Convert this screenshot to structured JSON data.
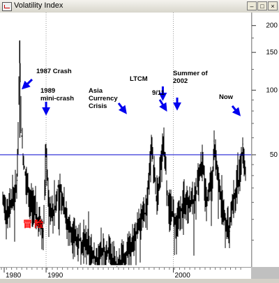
{
  "window": {
    "title": "Volatility Index"
  },
  "watermark": "冒险",
  "chart_data": {
    "type": "line",
    "y_scale": "log",
    "ylim": [
      15,
      230
    ],
    "xlim": [
      1986.5,
      2005
    ],
    "y_ticks": [
      50,
      100,
      150,
      200
    ],
    "x_ticks": [
      1980,
      1990,
      2000
    ],
    "x_tick_labels": [
      "1980",
      "1990",
      "2000"
    ],
    "reference_line": 50,
    "grid": "dotted vertical at decade marks",
    "colors": {
      "series": "#000000",
      "reference": "#0000cc",
      "arrow": "#0000ee",
      "watermark": "#ff0000"
    },
    "series": [
      {
        "values": [
          [
            1986.5,
            30
          ],
          [
            1986.8,
            26
          ],
          [
            1987.0,
            28
          ],
          [
            1987.3,
            32
          ],
          [
            1987.6,
            38
          ],
          [
            1987.8,
            170
          ],
          [
            1987.9,
            65
          ],
          [
            1988.1,
            45
          ],
          [
            1988.4,
            34
          ],
          [
            1988.8,
            28
          ],
          [
            1989.2,
            24
          ],
          [
            1989.6,
            22
          ],
          [
            1989.8,
            52
          ],
          [
            1990.0,
            30
          ],
          [
            1990.4,
            26
          ],
          [
            1990.7,
            36
          ],
          [
            1991.0,
            33
          ],
          [
            1991.4,
            24
          ],
          [
            1991.8,
            21
          ],
          [
            1992.3,
            20
          ],
          [
            1992.8,
            19
          ],
          [
            1993.3,
            17
          ],
          [
            1993.8,
            16
          ],
          [
            1994.2,
            18
          ],
          [
            1994.7,
            17
          ],
          [
            1995.2,
            15
          ],
          [
            1995.7,
            16
          ],
          [
            1996.2,
            18
          ],
          [
            1996.6,
            21
          ],
          [
            1997.0,
            24
          ],
          [
            1997.5,
            28
          ],
          [
            1997.85,
            55
          ],
          [
            1998.2,
            32
          ],
          [
            1998.6,
            45
          ],
          [
            1998.75,
            58
          ],
          [
            1999.1,
            30
          ],
          [
            1999.5,
            26
          ],
          [
            1999.9,
            25
          ],
          [
            2000.3,
            31
          ],
          [
            2000.8,
            29
          ],
          [
            2001.2,
            32
          ],
          [
            2001.7,
            48
          ],
          [
            2002.0,
            30
          ],
          [
            2002.5,
            40
          ],
          [
            2002.6,
            58
          ],
          [
            2003.0,
            35
          ],
          [
            2003.3,
            28
          ],
          [
            2003.8,
            22
          ],
          [
            2004.0,
            30
          ],
          [
            2004.2,
            34
          ],
          [
            2004.5,
            38
          ],
          [
            2004.8,
            56
          ],
          [
            2005.0,
            40
          ]
        ]
      }
    ],
    "annotations": [
      {
        "text": "1987 Crash",
        "x": 1987.8,
        "y": 110,
        "arrow": "down-left"
      },
      {
        "text": "1989\nmini-crash",
        "x": 1989.8,
        "y": 52,
        "arrow": "down"
      },
      {
        "text": "Asia\nCurrency\nCrisis",
        "x": 1997.85,
        "y": 55,
        "arrow": "down-right"
      },
      {
        "text": "LTCM",
        "x": 1998.75,
        "y": 58,
        "arrow": "down"
      },
      {
        "text": "9/11",
        "x": 2001.7,
        "y": 48,
        "arrow": "down-right"
      },
      {
        "text": "Summer of\n2002",
        "x": 2002.6,
        "y": 58,
        "arrow": "down"
      },
      {
        "text": "Now",
        "x": 2004.8,
        "y": 56,
        "arrow": "down-right"
      }
    ]
  }
}
